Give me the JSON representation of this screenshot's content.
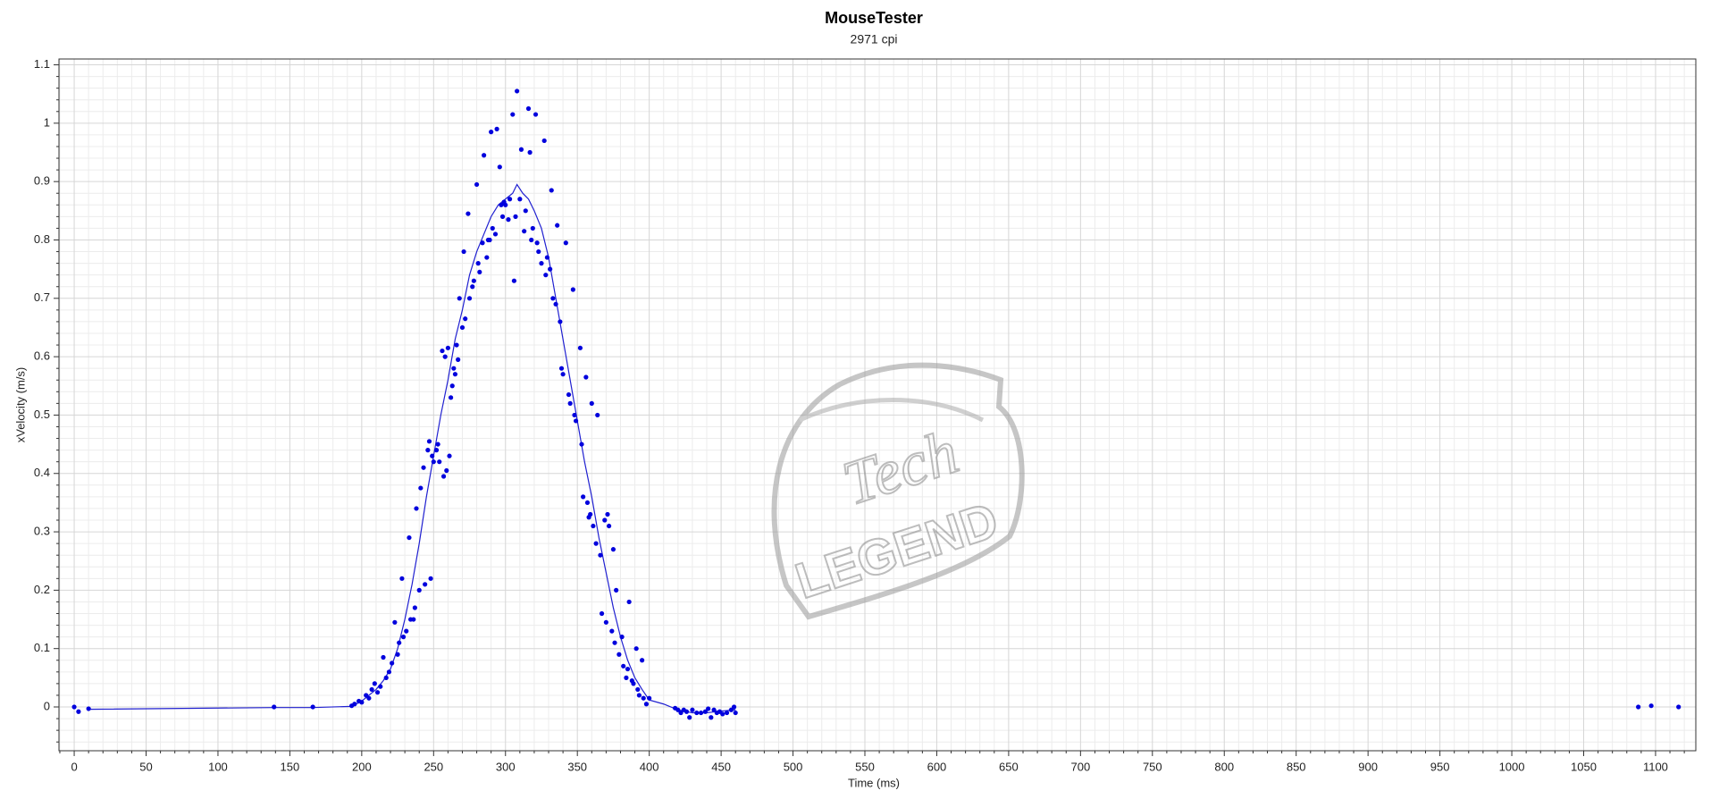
{
  "chart_data": {
    "type": "scatter",
    "title": "MouseTester",
    "subtitle": "2971 cpi",
    "x_label": "Time (ms)",
    "y_label": "xVelocity (m/s)",
    "xlim": [
      -10.6,
      1128
    ],
    "ylim": [
      -0.075,
      1.11
    ],
    "xticks": [
      0,
      50,
      100,
      150,
      200,
      250,
      300,
      350,
      400,
      450,
      500,
      550,
      600,
      650,
      700,
      750,
      800,
      850,
      900,
      950,
      1000,
      1050,
      1100
    ],
    "yticks": [
      0,
      0.1,
      0.2,
      0.3,
      0.4,
      0.5,
      0.6,
      0.7,
      0.8,
      0.9,
      1,
      1.1
    ],
    "grid": true,
    "watermark": [
      "Tech",
      "LEGEND"
    ],
    "series": [
      {
        "mode": "markers",
        "color": "#0000dd",
        "x": [
          0,
          3,
          10,
          139,
          166,
          193,
          195,
          198,
          200,
          203,
          205,
          207,
          209,
          211,
          213,
          215,
          217,
          219,
          221,
          223,
          225,
          226,
          228,
          229,
          231,
          233,
          234,
          236,
          237,
          238,
          240,
          241,
          243,
          244,
          246,
          247,
          248,
          249,
          250,
          252,
          253,
          254,
          256,
          257,
          258,
          259,
          260,
          261,
          262,
          263,
          264,
          265,
          266,
          267,
          268,
          270,
          271,
          272,
          274,
          275,
          277,
          278,
          280,
          281,
          282,
          284,
          285,
          287,
          288,
          289,
          290,
          291,
          293,
          294,
          296,
          297,
          298,
          299,
          300,
          302,
          303,
          305,
          306,
          307,
          308,
          310,
          311,
          313,
          314,
          316,
          317,
          318,
          319,
          321,
          322,
          323,
          325,
          327,
          328,
          329,
          331,
          332,
          333,
          335,
          336,
          338,
          339,
          340,
          342,
          344,
          345,
          347,
          348,
          349,
          352,
          353,
          354,
          356,
          357,
          358,
          359,
          360,
          361,
          363,
          364,
          366,
          367,
          369,
          370,
          371,
          372,
          374,
          375,
          376,
          377,
          379,
          381,
          382,
          384,
          385,
          386,
          388,
          389,
          391,
          392,
          393,
          395,
          396,
          398,
          400,
          418,
          420,
          422,
          424,
          426,
          428,
          430,
          433,
          436,
          439,
          441,
          443,
          445,
          447,
          449,
          451,
          454,
          457,
          459,
          460,
          1088,
          1097,
          1116
        ],
        "values": [
          0,
          -0.008,
          -0.003,
          0,
          0,
          0.002,
          0.005,
          0.01,
          0.008,
          0.02,
          0.015,
          0.03,
          0.04,
          0.025,
          0.035,
          0.085,
          0.05,
          0.06,
          0.075,
          0.145,
          0.09,
          0.11,
          0.22,
          0.12,
          0.13,
          0.29,
          0.15,
          0.15,
          0.17,
          0.34,
          0.2,
          0.375,
          0.41,
          0.21,
          0.44,
          0.455,
          0.22,
          0.43,
          0.42,
          0.44,
          0.45,
          0.42,
          0.61,
          0.395,
          0.6,
          0.405,
          0.615,
          0.43,
          0.53,
          0.55,
          0.58,
          0.57,
          0.62,
          0.595,
          0.7,
          0.65,
          0.78,
          0.665,
          0.845,
          0.7,
          0.72,
          0.73,
          0.895,
          0.76,
          0.745,
          0.795,
          0.945,
          0.77,
          0.8,
          0.8,
          0.985,
          0.82,
          0.81,
          0.99,
          0.925,
          0.86,
          0.84,
          0.865,
          0.86,
          0.835,
          0.87,
          1.015,
          0.73,
          0.84,
          1.055,
          0.87,
          0.955,
          0.815,
          0.85,
          1.025,
          0.95,
          0.8,
          0.82,
          1.015,
          0.795,
          0.78,
          0.76,
          0.97,
          0.74,
          0.77,
          0.75,
          0.885,
          0.7,
          0.69,
          0.825,
          0.66,
          0.58,
          0.57,
          0.795,
          0.535,
          0.52,
          0.715,
          0.5,
          0.49,
          0.615,
          0.45,
          0.36,
          0.565,
          0.35,
          0.325,
          0.33,
          0.52,
          0.31,
          0.28,
          0.5,
          0.26,
          0.16,
          0.32,
          0.145,
          0.33,
          0.31,
          0.13,
          0.27,
          0.11,
          0.2,
          0.09,
          0.12,
          0.07,
          0.05,
          0.065,
          0.18,
          0.045,
          0.04,
          0.1,
          0.03,
          0.02,
          0.08,
          0.015,
          0.005,
          0.015,
          -0.002,
          -0.005,
          -0.01,
          -0.005,
          -0.008,
          -0.018,
          -0.005,
          -0.01,
          -0.01,
          -0.008,
          -0.003,
          -0.018,
          -0.005,
          -0.01,
          -0.008,
          -0.012,
          -0.01,
          -0.005,
          0,
          -0.01,
          0,
          0.002,
          0
        ]
      },
      {
        "mode": "line",
        "color": "#2020d0",
        "x": [
          10,
          139,
          166,
          193,
          200,
          205,
          210,
          215,
          220,
          225,
          230,
          235,
          240,
          245,
          250,
          255,
          260,
          265,
          270,
          275,
          280,
          285,
          290,
          295,
          300,
          305,
          308,
          312,
          316,
          320,
          325,
          330,
          335,
          340,
          345,
          350,
          355,
          360,
          365,
          370,
          375,
          380,
          385,
          390,
          395,
          400,
          410,
          420,
          430,
          440,
          450,
          460
        ],
        "values": [
          -0.004,
          -0.001,
          -0.001,
          0.001,
          0.01,
          0.02,
          0.03,
          0.045,
          0.065,
          0.1,
          0.15,
          0.21,
          0.28,
          0.36,
          0.43,
          0.5,
          0.56,
          0.63,
          0.68,
          0.74,
          0.78,
          0.81,
          0.84,
          0.86,
          0.87,
          0.88,
          0.895,
          0.88,
          0.87,
          0.85,
          0.82,
          0.77,
          0.7,
          0.63,
          0.56,
          0.49,
          0.42,
          0.36,
          0.29,
          0.23,
          0.17,
          0.12,
          0.08,
          0.05,
          0.03,
          0.012,
          0.005,
          -0.005,
          -0.01,
          -0.01,
          -0.007,
          -0.005
        ]
      }
    ]
  }
}
